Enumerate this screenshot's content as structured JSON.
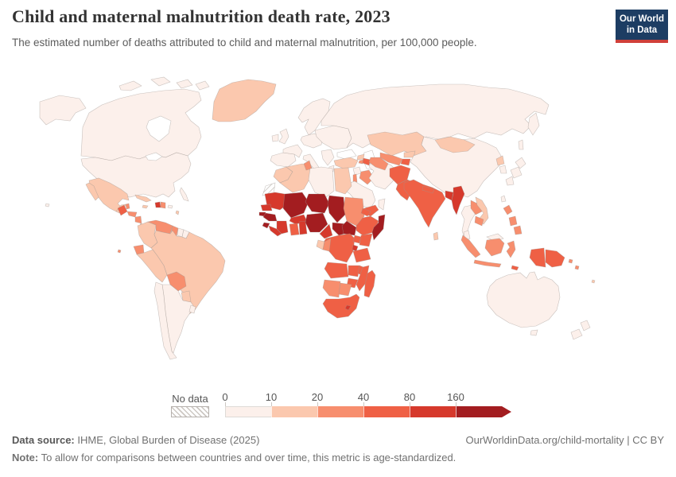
{
  "header": {
    "title": "Child and maternal malnutrition death rate, 2023",
    "subtitle": "The estimated number of deaths attributed to child and maternal malnutrition, per 100,000 people."
  },
  "logo": {
    "line1": "Our World",
    "line2": "in Data"
  },
  "legend": {
    "no_data_label": "No data",
    "ticks": [
      "0",
      "10",
      "20",
      "40",
      "80",
      "160"
    ],
    "bins": [
      {
        "range": "0-10",
        "color": "#fcf0eb"
      },
      {
        "range": "10-20",
        "color": "#fbc8ae"
      },
      {
        "range": "20-40",
        "color": "#f78e6e"
      },
      {
        "range": "40-80",
        "color": "#ef6045"
      },
      {
        "range": "80-160",
        "color": "#d6392c"
      },
      {
        "range": "160+",
        "color": "#a31d20"
      }
    ]
  },
  "footer": {
    "source_label": "Data source:",
    "source_text": " IHME, Global Burden of Disease (2025)",
    "link_text": "OurWorldinData.org/child-mortality | CC BY",
    "note_label": "Note:",
    "note_text": " To allow for comparisons between countries and over time, this metric is age-standardized."
  },
  "chart_data": {
    "type": "heatmap",
    "subtype": "choropleth-world-map",
    "title": "Child and maternal malnutrition death rate, 2023",
    "unit": "deaths per 100,000 people",
    "year": 2023,
    "legend_bins": [
      "0-10",
      "10-20",
      "20-40",
      "40-80",
      "80-160",
      "160+"
    ],
    "legend_colors": [
      "#fcf0eb",
      "#fbc8ae",
      "#f78e6e",
      "#ef6045",
      "#d6392c",
      "#a31d20"
    ],
    "no_data_regions": [
      "Western Sahara"
    ],
    "countries_by_bin": {
      "0-10": [
        "United States",
        "Canada",
        "Chile",
        "Argentina",
        "Uruguay",
        "Suriname",
        "Iceland",
        "United Kingdom",
        "Ireland",
        "Spain",
        "Portugal",
        "France",
        "Germany",
        "Poland",
        "Ukraine",
        "Italy",
        "Greece",
        "Norway",
        "Sweden",
        "Finland",
        "Russia",
        "China",
        "Japan",
        "South Korea",
        "Taiwan",
        "Thailand",
        "Malaysia",
        "Australia",
        "New Zealand",
        "Saudi Arabia",
        "Iran",
        "Oman",
        "Syria",
        "Libya"
      ],
      "10-20": [
        "Greenland",
        "Mexico",
        "Cuba",
        "Jamaica",
        "Costa Rica",
        "Colombia",
        "Peru",
        "Brazil",
        "Paraguay",
        "Morocco",
        "Algeria",
        "Egypt",
        "Gabon",
        "Turkey",
        "Kazakhstan",
        "Mongolia",
        "Kyrgyzstan",
        "North Korea",
        "Vietnam",
        "Sri Lanka"
      ],
      "20-40": [
        "Belize",
        "Honduras",
        "Nicaragua",
        "Panama",
        "Dominican Republic",
        "Venezuela",
        "Guyana",
        "Ecuador",
        "Bolivia",
        "Tunisia",
        "Sudan",
        "Congo",
        "Namibia",
        "Botswana",
        "Jordan",
        "Iraq",
        "Uzbekistan",
        "Turkmenistan",
        "Armenia",
        "Laos",
        "Cambodia",
        "Philippines",
        "Indonesia"
      ],
      "40-80": [
        "Guatemala",
        "Ethiopia",
        "Eritrea",
        "Ghana",
        "Democratic Republic of Congo",
        "Uganda",
        "Kenya",
        "Tanzania",
        "Angola",
        "Zambia",
        "Malawi",
        "Mozambique",
        "Zimbabwe",
        "South Africa",
        "Madagascar",
        "Yemen",
        "Azerbaijan",
        "Tajikistan",
        "Afghanistan",
        "Pakistan",
        "India",
        "Nepal",
        "Papua New Guinea"
      ],
      "80-160": [
        "Haiti",
        "Mauritania",
        "Senegal",
        "Liberia",
        "Cote d'Ivoire",
        "Burkina Faso",
        "Togo",
        "Benin",
        "Cameroon",
        "Rwanda",
        "Burundi",
        "Lesotho",
        "Bangladesh",
        "Myanmar"
      ],
      "160+": [
        "Mali",
        "Niger",
        "Chad",
        "Nigeria",
        "Guinea",
        "Guinea-Bissau",
        "Sierra Leone",
        "Somalia",
        "Central African Republic",
        "South Sudan"
      ]
    }
  },
  "map": {
    "countries": [
      {
        "id": "canada",
        "name": "Canada",
        "bin": 0
      },
      {
        "id": "alaska",
        "name": "United States (Alaska)",
        "bin": 0
      },
      {
        "id": "usa",
        "name": "United States",
        "bin": 0
      },
      {
        "id": "florida",
        "name": "United States",
        "bin": 0
      },
      {
        "id": "arctic1",
        "name": "Canada (Arctic)",
        "bin": 0
      },
      {
        "id": "arctic2",
        "name": "Canada (Arctic)",
        "bin": 0
      },
      {
        "id": "arctic3",
        "name": "Canada (Arctic)",
        "bin": 0
      },
      {
        "id": "arctic4",
        "name": "Canada (Arctic)",
        "bin": 0
      },
      {
        "id": "greenland",
        "name": "Greenland",
        "bin": 1
      },
      {
        "id": "iceland",
        "name": "Iceland",
        "bin": 0
      },
      {
        "id": "mexico",
        "name": "Mexico",
        "bin": 1
      },
      {
        "id": "baja",
        "name": "Mexico (Baja)",
        "bin": 1
      },
      {
        "id": "yucatan",
        "name": "Mexico (Yucatan)",
        "bin": 1
      },
      {
        "id": "guatemala",
        "name": "Guatemala",
        "bin": 3
      },
      {
        "id": "belize",
        "name": "Belize",
        "bin": 2
      },
      {
        "id": "honduras",
        "name": "Honduras",
        "bin": 2
      },
      {
        "id": "nicaragua",
        "name": "Nicaragua",
        "bin": 2
      },
      {
        "id": "costarica",
        "name": "Costa Rica",
        "bin": 1
      },
      {
        "id": "panama",
        "name": "Panama",
        "bin": 2
      },
      {
        "id": "cuba",
        "name": "Cuba",
        "bin": 1
      },
      {
        "id": "jamaica",
        "name": "Jamaica",
        "bin": 1
      },
      {
        "id": "haiti",
        "name": "Haiti",
        "bin": 4
      },
      {
        "id": "domrep",
        "name": "Dominican Republic",
        "bin": 2
      },
      {
        "id": "puertorico",
        "name": "Puerto Rico",
        "bin": 0
      },
      {
        "id": "antilles",
        "name": "Lesser Antilles",
        "bin": 1
      },
      {
        "id": "hawaii",
        "name": "Hawaii",
        "bin": 0
      },
      {
        "id": "galapagos",
        "name": "Galapagos",
        "bin": 2
      },
      {
        "id": "colombia",
        "name": "Colombia",
        "bin": 1
      },
      {
        "id": "venezuela",
        "name": "Venezuela",
        "bin": 2
      },
      {
        "id": "guyana",
        "name": "Guyana",
        "bin": 2
      },
      {
        "id": "suriname",
        "name": "Suriname",
        "bin": 0
      },
      {
        "id": "frguiana",
        "name": "French Guiana",
        "bin": 0
      },
      {
        "id": "ecuador",
        "name": "Ecuador",
        "bin": 2
      },
      {
        "id": "peru",
        "name": "Peru",
        "bin": 1
      },
      {
        "id": "brazil",
        "name": "Brazil",
        "bin": 1
      },
      {
        "id": "bolivia",
        "name": "Bolivia",
        "bin": 2
      },
      {
        "id": "paraguay",
        "name": "Paraguay",
        "bin": 1
      },
      {
        "id": "chile",
        "name": "Chile",
        "bin": 0
      },
      {
        "id": "argentina",
        "name": "Argentina",
        "bin": 0
      },
      {
        "id": "uruguay",
        "name": "Uruguay",
        "bin": 0
      },
      {
        "id": "ireland",
        "name": "Ireland",
        "bin": 0
      },
      {
        "id": "uk",
        "name": "United Kingdom",
        "bin": 0
      },
      {
        "id": "scandinavia",
        "name": "Norway/Sweden/Finland",
        "bin": 0
      },
      {
        "id": "iberia",
        "name": "Spain/Portugal",
        "bin": 0
      },
      {
        "id": "france",
        "name": "France",
        "bin": 0
      },
      {
        "id": "centraleurope",
        "name": "Central Europe",
        "bin": 0
      },
      {
        "id": "italy",
        "name": "Italy",
        "bin": 0
      },
      {
        "id": "balkans",
        "name": "Balkans",
        "bin": 0
      },
      {
        "id": "easterneurope",
        "name": "Eastern Europe",
        "bin": 0
      },
      {
        "id": "greece",
        "name": "Greece",
        "bin": 0
      },
      {
        "id": "turkey",
        "name": "Turkey",
        "bin": 1
      },
      {
        "id": "russia",
        "name": "Russia",
        "bin": 0
      },
      {
        "id": "kamchatka",
        "name": "Russia (Kamchatka)",
        "bin": 0
      },
      {
        "id": "sakhalin",
        "name": "Russia (Sakhalin)",
        "bin": 0
      },
      {
        "id": "georgia",
        "name": "Georgia",
        "bin": 1
      },
      {
        "id": "armenia",
        "name": "Armenia",
        "bin": 2
      },
      {
        "id": "azerbaijan",
        "name": "Azerbaijan",
        "bin": 3
      },
      {
        "id": "syria",
        "name": "Syria",
        "bin": 0
      },
      {
        "id": "jordan",
        "name": "Jordan",
        "bin": 2
      },
      {
        "id": "iraq",
        "name": "Iraq",
        "bin": 2
      },
      {
        "id": "iran",
        "name": "Iran",
        "bin": 0
      },
      {
        "id": "saudi",
        "name": "Saudi Arabia",
        "bin": 0
      },
      {
        "id": "yemen",
        "name": "Yemen",
        "bin": 3
      },
      {
        "id": "oman",
        "name": "Oman",
        "bin": 0
      },
      {
        "id": "kazakhstan",
        "name": "Kazakhstan",
        "bin": 1
      },
      {
        "id": "uzbekistan",
        "name": "Uzbekistan",
        "bin": 2
      },
      {
        "id": "turkmenistan",
        "name": "Turkmenistan",
        "bin": 2
      },
      {
        "id": "kyrgyzstan",
        "name": "Kyrgyzstan",
        "bin": 1
      },
      {
        "id": "tajikistan",
        "name": "Tajikistan",
        "bin": 3
      },
      {
        "id": "afghanistan",
        "name": "Afghanistan",
        "bin": 3
      },
      {
        "id": "pakistan",
        "name": "Pakistan",
        "bin": 3
      },
      {
        "id": "china",
        "name": "China",
        "bin": 0
      },
      {
        "id": "mongolia",
        "name": "Mongolia",
        "bin": 1
      },
      {
        "id": "nkorea",
        "name": "North Korea",
        "bin": 1
      },
      {
        "id": "skorea",
        "name": "South Korea",
        "bin": 0
      },
      {
        "id": "japan1",
        "name": "Japan",
        "bin": 0
      },
      {
        "id": "japan2",
        "name": "Japan",
        "bin": 0
      },
      {
        "id": "japan3",
        "name": "Japan",
        "bin": 0
      },
      {
        "id": "taiwan",
        "name": "Taiwan",
        "bin": 0
      },
      {
        "id": "india",
        "name": "India",
        "bin": 3
      },
      {
        "id": "nepal",
        "name": "Nepal",
        "bin": 3
      },
      {
        "id": "bangladesh",
        "name": "Bangladesh",
        "bin": 4
      },
      {
        "id": "myanmar",
        "name": "Myanmar",
        "bin": 4
      },
      {
        "id": "srilanka",
        "name": "Sri Lanka",
        "bin": 1
      },
      {
        "id": "thailand",
        "name": "Thailand",
        "bin": 0
      },
      {
        "id": "laos",
        "name": "Laos",
        "bin": 2
      },
      {
        "id": "vietnam",
        "name": "Vietnam",
        "bin": 1
      },
      {
        "id": "cambodia",
        "name": "Cambodia",
        "bin": 2
      },
      {
        "id": "malaypen",
        "name": "Malaysia (Peninsula)",
        "bin": 0
      },
      {
        "id": "malayborneo",
        "name": "Malaysia (Borneo)",
        "bin": 0
      },
      {
        "id": "sumatra",
        "name": "Indonesia (Sumatra)",
        "bin": 2
      },
      {
        "id": "java",
        "name": "Indonesia (Java)",
        "bin": 2
      },
      {
        "id": "kalimantan",
        "name": "Indonesia (Kalimantan)",
        "bin": 2
      },
      {
        "id": "sulawesi",
        "name": "Indonesia (Sulawesi)",
        "bin": 2
      },
      {
        "id": "papuaid",
        "name": "Indonesia (Papua)",
        "bin": 3
      },
      {
        "id": "png",
        "name": "Papua New Guinea",
        "bin": 3
      },
      {
        "id": "solomon1",
        "name": "Solomon Islands",
        "bin": 2
      },
      {
        "id": "solomon2",
        "name": "Vanuatu",
        "bin": 2
      },
      {
        "id": "fiji",
        "name": "Fiji",
        "bin": 1
      },
      {
        "id": "phil1",
        "name": "Philippines",
        "bin": 2
      },
      {
        "id": "phil2",
        "name": "Philippines",
        "bin": 2
      },
      {
        "id": "phil3",
        "name": "Philippines",
        "bin": 2
      },
      {
        "id": "timor",
        "name": "Timor-Leste",
        "bin": 3
      },
      {
        "id": "morocco",
        "name": "Morocco",
        "bin": 1
      },
      {
        "id": "wsahara",
        "name": "Western Sahara",
        "bin": "nodata"
      },
      {
        "id": "algeria",
        "name": "Algeria",
        "bin": 1
      },
      {
        "id": "tunisia",
        "name": "Tunisia",
        "bin": 2
      },
      {
        "id": "libya",
        "name": "Libya",
        "bin": 0
      },
      {
        "id": "egypt",
        "name": "Egypt",
        "bin": 1
      },
      {
        "id": "mauritania",
        "name": "Mauritania",
        "bin": 4
      },
      {
        "id": "mali",
        "name": "Mali",
        "bin": 5
      },
      {
        "id": "niger",
        "name": "Niger",
        "bin": 5
      },
      {
        "id": "chad",
        "name": "Chad",
        "bin": 5
      },
      {
        "id": "sudan",
        "name": "Sudan",
        "bin": 2
      },
      {
        "id": "eritrea",
        "name": "Eritrea",
        "bin": 3
      },
      {
        "id": "ethiopia",
        "name": "Ethiopia",
        "bin": 3
      },
      {
        "id": "somalia",
        "name": "Somalia",
        "bin": 5
      },
      {
        "id": "senegal",
        "name": "Senegal",
        "bin": 4
      },
      {
        "id": "guineabissau",
        "name": "Guinea-Bissau",
        "bin": 5
      },
      {
        "id": "guinea",
        "name": "Guinea",
        "bin": 5
      },
      {
        "id": "sierraleone",
        "name": "Sierra Leone",
        "bin": 5
      },
      {
        "id": "liberia",
        "name": "Liberia",
        "bin": 4
      },
      {
        "id": "ivorycoast",
        "name": "Cote d'Ivoire",
        "bin": 4
      },
      {
        "id": "burkina",
        "name": "Burkina Faso",
        "bin": 4
      },
      {
        "id": "ghana",
        "name": "Ghana",
        "bin": 3
      },
      {
        "id": "togobenin",
        "name": "Togo/Benin",
        "bin": 4
      },
      {
        "id": "nigeria",
        "name": "Nigeria",
        "bin": 5
      },
      {
        "id": "cameroon",
        "name": "Cameroon",
        "bin": 4
      },
      {
        "id": "car",
        "name": "Central African Republic",
        "bin": 5
      },
      {
        "id": "southsudan",
        "name": "South Sudan",
        "bin": 5
      },
      {
        "id": "drc",
        "name": "Democratic Republic of Congo",
        "bin": 3
      },
      {
        "id": "gabon",
        "name": "Gabon",
        "bin": 1
      },
      {
        "id": "congo",
        "name": "Congo",
        "bin": 2
      },
      {
        "id": "uganda",
        "name": "Uganda",
        "bin": 3
      },
      {
        "id": "kenya",
        "name": "Kenya",
        "bin": 3
      },
      {
        "id": "rwandaburundi",
        "name": "Rwanda/Burundi",
        "bin": 4
      },
      {
        "id": "tanzania",
        "name": "Tanzania",
        "bin": 3
      },
      {
        "id": "angola",
        "name": "Angola",
        "bin": 3
      },
      {
        "id": "zambia",
        "name": "Zambia",
        "bin": 3
      },
      {
        "id": "malawi",
        "name": "Malawi",
        "bin": 3
      },
      {
        "id": "mozambique",
        "name": "Mozambique",
        "bin": 3
      },
      {
        "id": "zimbabwe",
        "name": "Zimbabwe",
        "bin": 3
      },
      {
        "id": "namibia",
        "name": "Namibia",
        "bin": 2
      },
      {
        "id": "botswana",
        "name": "Botswana",
        "bin": 2
      },
      {
        "id": "southafrica",
        "name": "South Africa",
        "bin": 3
      },
      {
        "id": "lesotho",
        "name": "Lesotho",
        "bin": 4
      },
      {
        "id": "madagascar",
        "name": "Madagascar",
        "bin": 3
      },
      {
        "id": "australia",
        "name": "Australia",
        "bin": 0
      },
      {
        "id": "tasmania",
        "name": "Australia (Tasmania)",
        "bin": 0
      },
      {
        "id": "nznorth",
        "name": "New Zealand",
        "bin": 0
      },
      {
        "id": "nzsouth",
        "name": "New Zealand",
        "bin": 0
      }
    ]
  }
}
